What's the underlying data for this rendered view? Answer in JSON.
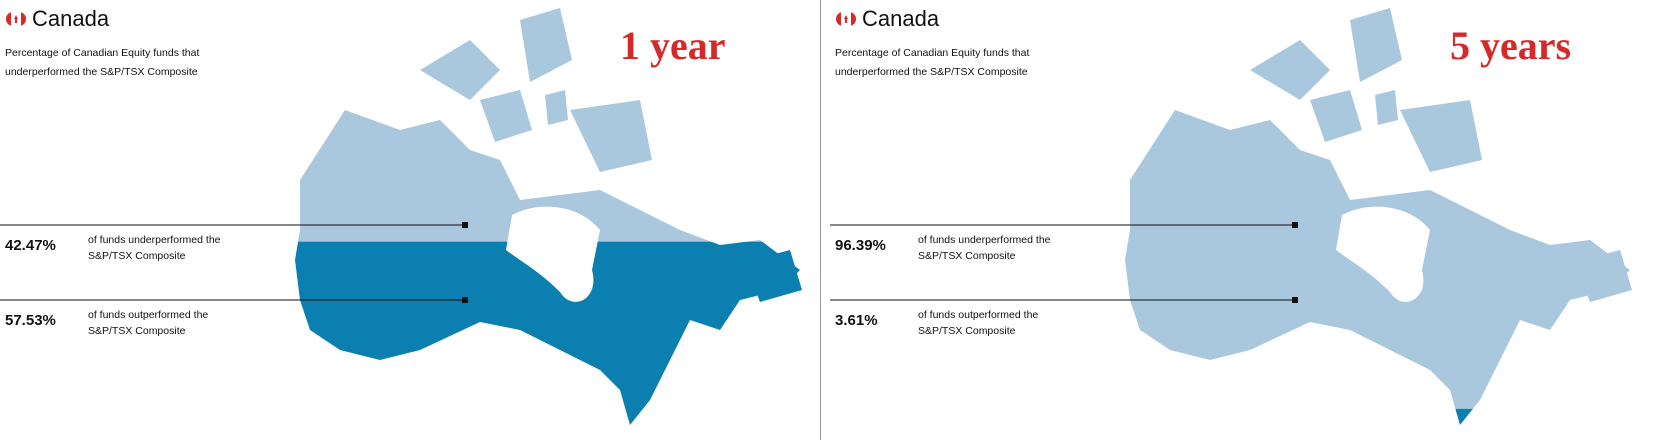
{
  "chart_data": [
    {
      "type": "fill",
      "title": "Canada",
      "subtitle": "Percentage of Canadian Equity funds that underperformed the S&P/TSX Composite",
      "annotation": "1 year",
      "categories": [
        "of funds underperformed the S&P/TSX Composite",
        "of funds outperformed the S&P/TSX Composite"
      ],
      "values": [
        42.47,
        57.53
      ],
      "value_labels": [
        "42.47%",
        "57.53%"
      ],
      "colors": [
        "#a9c7dd",
        "#0a7fb0"
      ]
    },
    {
      "type": "fill",
      "title": "Canada",
      "subtitle": "Percentage of Canadian Equity funds that underperformed the S&P/TSX Composite",
      "annotation": "5 years",
      "categories": [
        "of funds underperformed the S&P/TSX Composite",
        "of funds outperformed the S&P/TSX Composite"
      ],
      "values": [
        96.39,
        3.61
      ],
      "value_labels": [
        "96.39%",
        "3.61%"
      ],
      "colors": [
        "#a9c7dd",
        "#0a7fb0"
      ]
    }
  ]
}
